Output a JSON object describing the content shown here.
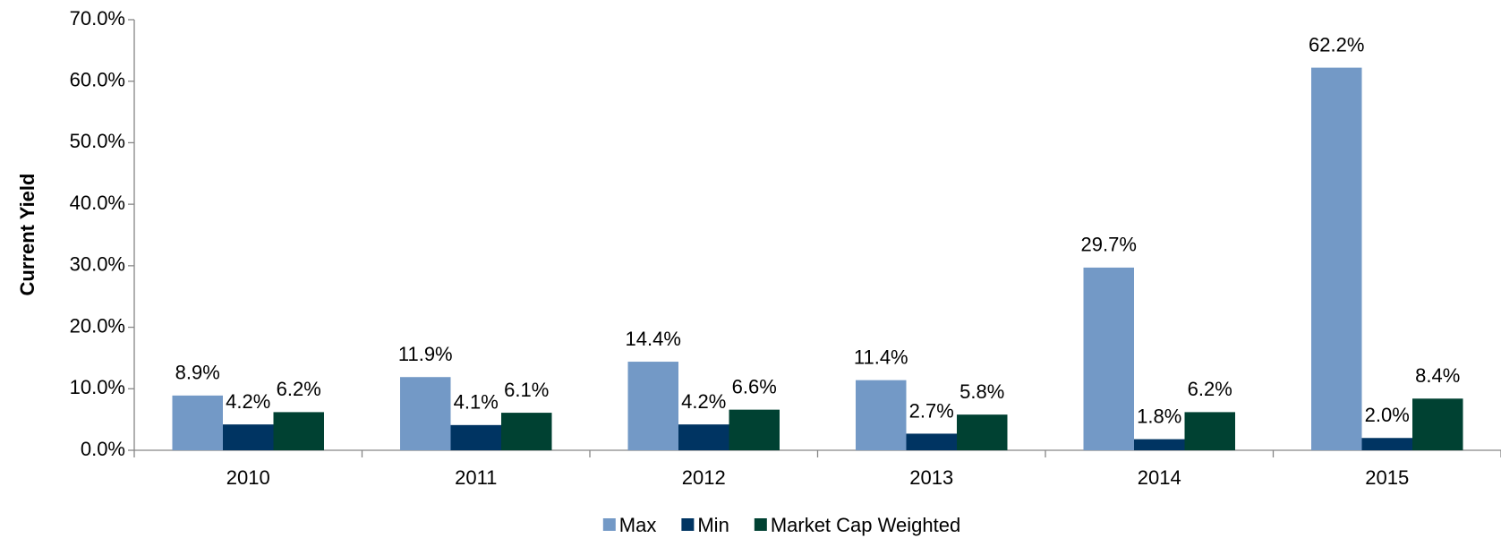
{
  "chart_data": {
    "type": "bar",
    "y_label": "Current Yield",
    "categories": [
      "2010",
      "2011",
      "2012",
      "2013",
      "2014",
      "2015"
    ],
    "series": [
      {
        "name": "Max",
        "color": "#7399c6",
        "values": [
          8.9,
          11.9,
          14.4,
          11.4,
          29.7,
          62.2
        ],
        "value_labels": [
          "8.9%",
          "11.9%",
          "14.4%",
          "11.4%",
          "29.7%",
          "62.2%"
        ]
      },
      {
        "name": "Min",
        "color": "#003462",
        "values": [
          4.2,
          4.1,
          4.2,
          2.7,
          1.8,
          2.0
        ],
        "value_labels": [
          "4.2%",
          "4.1%",
          "4.2%",
          "2.7%",
          "1.8%",
          "2.0%"
        ]
      },
      {
        "name": "Market Cap Weighted",
        "color": "#004132",
        "values": [
          6.2,
          6.1,
          6.6,
          5.8,
          6.2,
          8.4
        ],
        "value_labels": [
          "6.2%",
          "6.1%",
          "6.6%",
          "5.8%",
          "6.2%",
          "8.4%"
        ]
      }
    ],
    "ylim": [
      0,
      70
    ],
    "yticks": [
      {
        "value": 0,
        "label": "0.0%"
      },
      {
        "value": 10,
        "label": "10.0%"
      },
      {
        "value": 20,
        "label": "20.0%"
      },
      {
        "value": 30,
        "label": "30.0%"
      },
      {
        "value": 40,
        "label": "40.0%"
      },
      {
        "value": 50,
        "label": "50.0%"
      },
      {
        "value": 60,
        "label": "60.0%"
      },
      {
        "value": 70,
        "label": "70.0%"
      }
    ],
    "grid": false,
    "legend": "bottom"
  }
}
